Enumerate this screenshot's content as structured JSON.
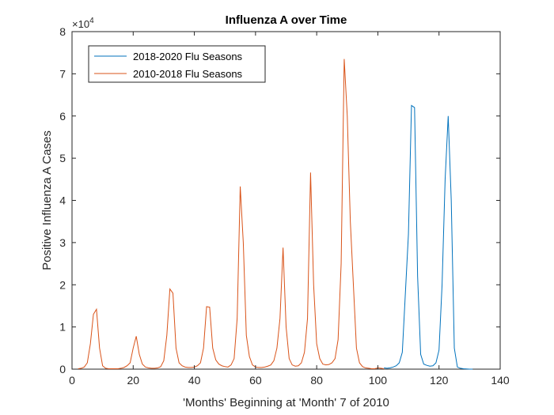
{
  "chart_data": {
    "type": "line",
    "title": "Influenza A over Time",
    "xlabel": "'Months' Beginning at 'Month' 7 of 2010",
    "ylabel": "Positive Influenza A Cases",
    "xlim": [
      0,
      140
    ],
    "ylim": [
      0,
      80000
    ],
    "xticks": [
      0,
      20,
      40,
      60,
      80,
      100,
      120,
      140
    ],
    "yticks": [
      0,
      10000,
      20000,
      30000,
      40000,
      50000,
      60000,
      70000,
      80000
    ],
    "ytick_labels": [
      "0",
      "1",
      "2",
      "3",
      "4",
      "5",
      "6",
      "7",
      "8"
    ],
    "y_exponent_label": "×10",
    "y_exponent_power": "4",
    "grid": false,
    "legend_position": "top-left",
    "series": [
      {
        "name": "2018-2020 Flu Seasons",
        "color": "#0072BD",
        "x": [
          102,
          103,
          104,
          105,
          106,
          107,
          108,
          109,
          110,
          111,
          112,
          113,
          114,
          115,
          116,
          117,
          118,
          119,
          120,
          121,
          122,
          123,
          124,
          125,
          126,
          127,
          128,
          129,
          130,
          131
        ],
        "values": [
          300,
          200,
          300,
          500,
          800,
          1500,
          4000,
          18000,
          32000,
          62500,
          62000,
          22000,
          3500,
          1200,
          900,
          700,
          800,
          1500,
          4500,
          20000,
          45000,
          60000,
          40000,
          5000,
          500,
          200,
          100,
          50,
          0,
          0
        ]
      },
      {
        "name": "2010-2018 Flu Seasons",
        "color": "#D95319",
        "x": [
          2,
          3,
          4,
          5,
          6,
          7,
          8,
          9,
          10,
          11,
          12,
          13,
          14,
          15,
          16,
          17,
          18,
          19,
          20,
          21,
          22,
          23,
          24,
          25,
          26,
          27,
          28,
          29,
          30,
          31,
          32,
          33,
          34,
          35,
          36,
          37,
          38,
          39,
          40,
          41,
          42,
          43,
          44,
          45,
          46,
          47,
          48,
          49,
          50,
          51,
          52,
          53,
          54,
          55,
          56,
          57,
          58,
          59,
          60,
          61,
          62,
          63,
          64,
          65,
          66,
          67,
          68,
          69,
          70,
          71,
          72,
          73,
          74,
          75,
          76,
          77,
          78,
          79,
          80,
          81,
          82,
          83,
          84,
          85,
          86,
          87,
          88,
          89,
          90,
          91,
          92,
          93,
          94,
          95,
          96,
          97,
          98,
          99,
          100,
          101,
          102
        ],
        "values": [
          100,
          200,
          500,
          1500,
          6000,
          13000,
          14200,
          5000,
          800,
          200,
          100,
          100,
          100,
          100,
          200,
          400,
          800,
          1500,
          5000,
          7800,
          3500,
          1200,
          500,
          300,
          200,
          200,
          300,
          600,
          2000,
          8000,
          19000,
          18000,
          5000,
          1500,
          800,
          500,
          400,
          400,
          500,
          800,
          1500,
          5000,
          14800,
          14700,
          5000,
          2200,
          1200,
          800,
          600,
          500,
          1000,
          2500,
          12000,
          43300,
          30000,
          8000,
          3000,
          1000,
          500,
          400,
          400,
          500,
          700,
          1000,
          2000,
          5000,
          12000,
          28800,
          10000,
          2500,
          1000,
          700,
          800,
          1500,
          4000,
          12000,
          46600,
          20000,
          6000,
          2500,
          1200,
          1000,
          1100,
          1500,
          2500,
          7000,
          25000,
          73500,
          60000,
          35000,
          20000,
          5000,
          1500,
          600,
          300,
          200,
          100,
          100,
          300,
          200,
          100
        ]
      }
    ]
  }
}
